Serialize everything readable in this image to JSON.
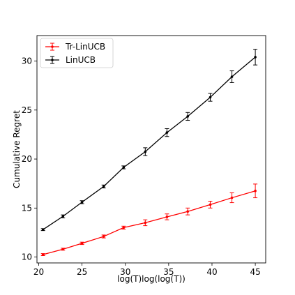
{
  "chart_data": {
    "type": "line",
    "title": "",
    "xlabel": "log(T)log(log(T))",
    "ylabel": "Cumulative Regret",
    "xlim": [
      19.8,
      46.2
    ],
    "ylim": [
      9.4,
      32.6
    ],
    "xticks": [
      20,
      25,
      30,
      35,
      40,
      45
    ],
    "yticks": [
      10,
      15,
      20,
      25,
      30
    ],
    "grid": false,
    "legend": "top-left",
    "series": [
      {
        "name": "Tr-LinUCB",
        "color": "#ff0000",
        "x": [
          20.5,
          22.8,
          25.0,
          27.5,
          29.8,
          32.3,
          34.8,
          37.2,
          39.8,
          42.3,
          45.0
        ],
        "y": [
          10.25,
          10.8,
          11.4,
          12.1,
          13.0,
          13.5,
          14.1,
          14.65,
          15.35,
          16.05,
          16.75
        ],
        "err": [
          0.1,
          0.1,
          0.12,
          0.15,
          0.15,
          0.3,
          0.3,
          0.35,
          0.35,
          0.5,
          0.7
        ]
      },
      {
        "name": "LinUCB",
        "color": "#000000",
        "x": [
          20.5,
          22.8,
          25.0,
          27.5,
          29.8,
          32.3,
          34.8,
          37.2,
          39.8,
          42.3,
          45.0
        ],
        "y": [
          12.8,
          14.15,
          15.6,
          17.2,
          19.15,
          20.75,
          22.7,
          24.35,
          26.3,
          28.4,
          30.4
        ],
        "err": [
          0.1,
          0.15,
          0.15,
          0.15,
          0.15,
          0.4,
          0.4,
          0.4,
          0.4,
          0.6,
          0.8
        ]
      }
    ]
  }
}
